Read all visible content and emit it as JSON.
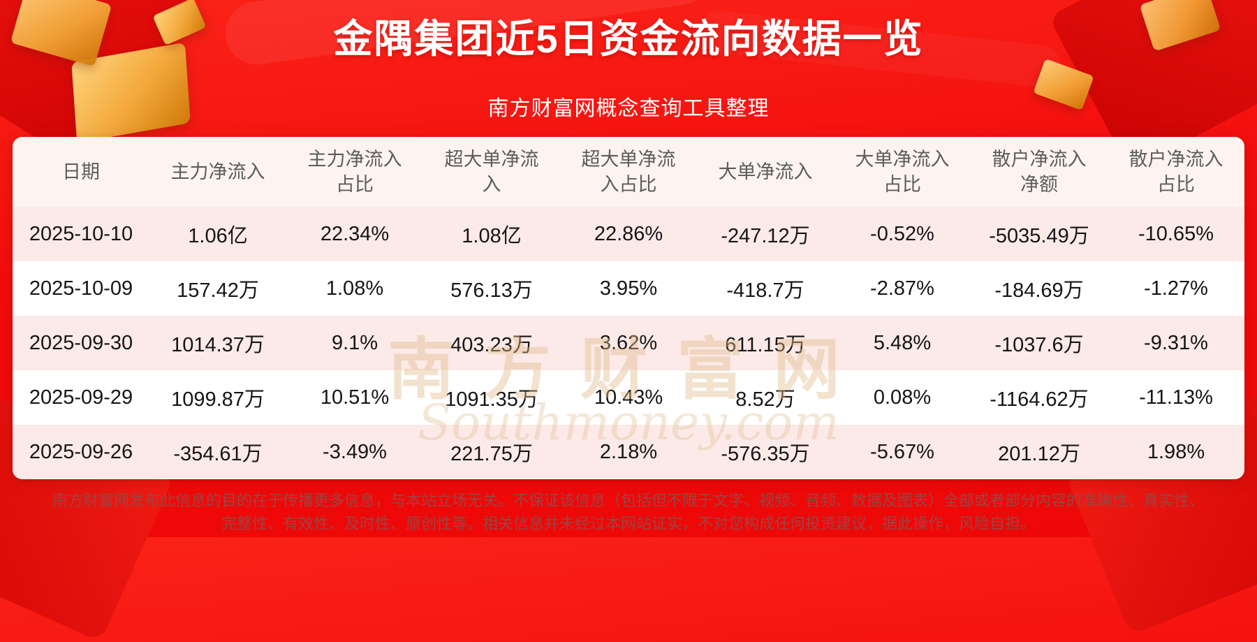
{
  "page": {
    "title": "金隅集团近5日资金流向数据一览",
    "subtitle": "南方财富网概念查询工具整理",
    "watermark_cn": "南方财富网",
    "watermark_en": "Southmoney.com",
    "disclaimer_line1": "南方财富网发布此信息的目的在于传播更多信息，与本站立场无关。不保证该信息（包括但不限于文字、视频、音频、数据及图表）全部或者部分内容的准确性、真实性、",
    "disclaimer_line2": "完整性、有效性、及时性、原创性等。相关信息并未经过本网站证实，不对您构成任何投资建议，据此操作，风险自担。"
  },
  "colors": {
    "background_red": "#f20c0c",
    "row_pink": "#fceae8",
    "row_white": "#ffffff",
    "header_background": "#fdf4f2",
    "header_text": "#5c5c5c",
    "cell_text": "#151515",
    "title_text": "#ffffff",
    "disclaimer_text": "#9b4444",
    "gold_decoration": "#f3a83b",
    "watermark_gold": "#e0ba8b"
  },
  "chart_data": {
    "type": "table",
    "title": "金隅集团近5日资金流向数据一览",
    "columns": [
      "日期",
      "主力净流入",
      "主力净流入占比",
      "超大单净流入",
      "超大单净流入占比",
      "大单净流入",
      "大单净流入占比",
      "散户净流入净额",
      "散户净流入占比"
    ],
    "rows": [
      [
        "2025-10-10",
        "1.06亿",
        "22.34%",
        "1.08亿",
        "22.86%",
        "-247.12万",
        "-0.52%",
        "-5035.49万",
        "-10.65%"
      ],
      [
        "2025-10-09",
        "157.42万",
        "1.08%",
        "576.13万",
        "3.95%",
        "-418.7万",
        "-2.87%",
        "-184.69万",
        "-1.27%"
      ],
      [
        "2025-09-30",
        "1014.37万",
        "9.1%",
        "403.23万",
        "3.62%",
        "611.15万",
        "5.48%",
        "-1037.6万",
        "-9.31%"
      ],
      [
        "2025-09-29",
        "1099.87万",
        "10.51%",
        "1091.35万",
        "10.43%",
        "8.52万",
        "0.08%",
        "-1164.62万",
        "-11.13%"
      ],
      [
        "2025-09-26",
        "-354.61万",
        "-3.49%",
        "221.75万",
        "2.18%",
        "-576.35万",
        "-5.67%",
        "201.12万",
        "1.98%"
      ]
    ]
  }
}
